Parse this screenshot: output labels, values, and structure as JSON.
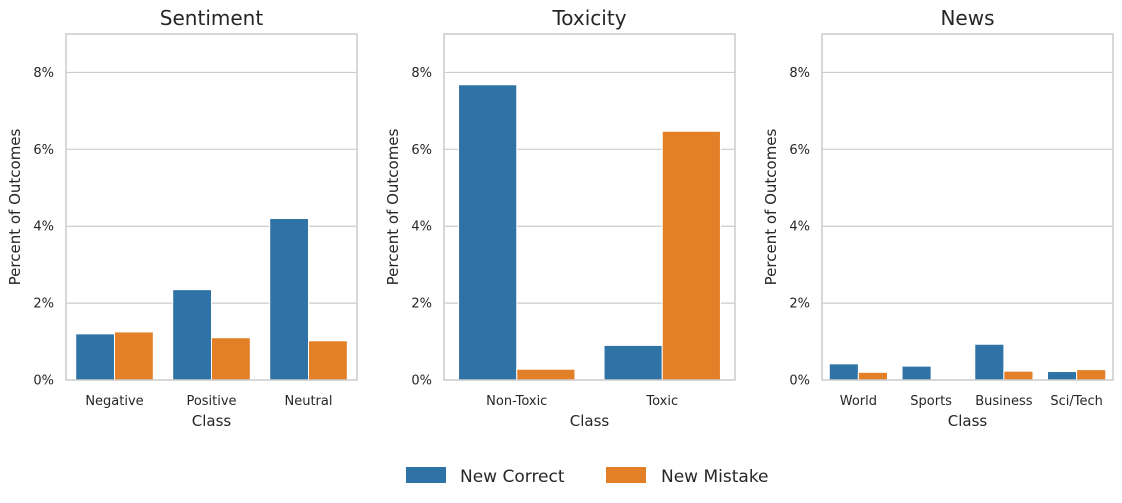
{
  "chart_data": [
    {
      "type": "bar",
      "title": "Sentiment",
      "xlabel": "Class",
      "ylabel": "Percent of Outcomes",
      "categories": [
        "Negative",
        "Positive",
        "Neutral"
      ],
      "series": [
        {
          "name": "New Correct",
          "values": [
            1.2,
            2.35,
            4.2
          ]
        },
        {
          "name": "New Mistake",
          "values": [
            1.25,
            1.1,
            1.02
          ]
        }
      ],
      "ylim": [
        0,
        9
      ],
      "yticks": [
        0,
        2,
        4,
        6,
        8
      ],
      "ytick_labels": [
        "0%",
        "2%",
        "4%",
        "6%",
        "8%"
      ],
      "grid": "horizontal"
    },
    {
      "type": "bar",
      "title": "Toxicity",
      "xlabel": "Class",
      "ylabel": "Percent of Outcomes",
      "categories": [
        "Non-Toxic",
        "Toxic"
      ],
      "series": [
        {
          "name": "New Correct",
          "values": [
            7.68,
            0.9
          ]
        },
        {
          "name": "New Mistake",
          "values": [
            0.28,
            6.47
          ]
        }
      ],
      "ylim": [
        0,
        9
      ],
      "yticks": [
        0,
        2,
        4,
        6,
        8
      ],
      "ytick_labels": [
        "0%",
        "2%",
        "4%",
        "6%",
        "8%"
      ],
      "grid": "horizontal"
    },
    {
      "type": "bar",
      "title": "News",
      "xlabel": "Class",
      "ylabel": "Percent of Outcomes",
      "categories": [
        "World",
        "Sports",
        "Business",
        "Sci/Tech"
      ],
      "series": [
        {
          "name": "New Correct",
          "values": [
            0.42,
            0.36,
            0.93,
            0.22
          ]
        },
        {
          "name": "New Mistake",
          "values": [
            0.2,
            0.0,
            0.23,
            0.27
          ]
        }
      ],
      "ylim": [
        0,
        9
      ],
      "yticks": [
        0,
        2,
        4,
        6,
        8
      ],
      "ytick_labels": [
        "0%",
        "2%",
        "4%",
        "6%",
        "8%"
      ],
      "grid": "horizontal"
    }
  ],
  "legend": {
    "position": "bottom-center",
    "items": [
      {
        "label": "New Correct",
        "color": "#2e72a6"
      },
      {
        "label": "New Mistake",
        "color": "#e27f27"
      }
    ]
  },
  "colors": {
    "series": [
      "#2e72a6",
      "#e27f27"
    ],
    "grid": "#cccccc",
    "spine": "#cccccc"
  }
}
